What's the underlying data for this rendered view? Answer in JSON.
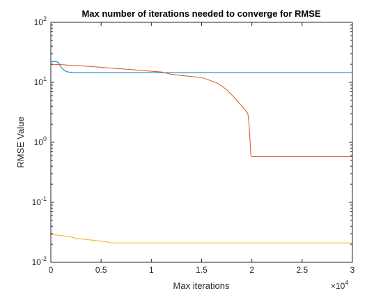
{
  "chart_data": {
    "type": "line",
    "title": "Max number of iterations needed to converge for RMSE",
    "xlabel": "Max iterations",
    "ylabel": "RMSE Value",
    "x_multiplier_label": "×10",
    "x_multiplier_exponent": "4",
    "xlim": [
      0,
      30000
    ],
    "ylim": [
      0.01,
      100
    ],
    "yscale": "log",
    "grid": false,
    "legend": "none",
    "x_ticks": [
      0,
      5000,
      10000,
      15000,
      20000,
      25000,
      30000
    ],
    "x_tick_labels": [
      "0",
      "0.5",
      "1",
      "1.5",
      "2",
      "2.5",
      "3"
    ],
    "y_ticks": [
      0.01,
      0.1,
      1,
      10,
      100
    ],
    "y_tick_base": [
      "10",
      "10",
      "10",
      "10",
      "10"
    ],
    "y_tick_exponents": [
      "-2",
      "-1",
      "0",
      "1",
      "2"
    ],
    "series": [
      {
        "color": "#0072BD",
        "x": [
          0,
          200,
          500,
          800,
          1000,
          1300,
          1600,
          2000,
          2300,
          2600,
          3000,
          10000,
          20000,
          30000
        ],
        "y": [
          22.5,
          22.0,
          22.5,
          21.0,
          18.0,
          16.0,
          15.0,
          14.7,
          14.5,
          14.5,
          14.5,
          14.5,
          14.5,
          14.5
        ]
      },
      {
        "color": "#D95319",
        "x": [
          0,
          1000,
          2000,
          3000,
          4000,
          5000,
          6000,
          7000,
          8000,
          9000,
          10000,
          11000,
          11500,
          12000,
          13000,
          14000,
          15000,
          15500,
          16000,
          16500,
          17000,
          17500,
          18000,
          18500,
          19000,
          19300,
          19500,
          19600,
          19700,
          19800,
          19900,
          20000,
          22000,
          25000,
          30000
        ],
        "y": [
          20,
          19.7,
          19.2,
          18.8,
          18.3,
          17.8,
          17.2,
          16.8,
          16.3,
          15.8,
          15.3,
          14.9,
          14.2,
          13.6,
          13.0,
          12.5,
          12.0,
          11.3,
          10.5,
          9.8,
          8.7,
          7.5,
          6.2,
          5.0,
          4.0,
          3.5,
          3.2,
          3.0,
          2.2,
          1.2,
          0.6,
          0.58,
          0.58,
          0.58,
          0.58
        ]
      },
      {
        "color": "#EDB120",
        "x": [
          0,
          500,
          1000,
          2000,
          2500,
          3500,
          4500,
          5500,
          6000,
          10000,
          20000,
          30000
        ],
        "y": [
          0.029,
          0.0285,
          0.028,
          0.0265,
          0.025,
          0.024,
          0.023,
          0.022,
          0.021,
          0.021,
          0.021,
          0.021
        ]
      }
    ]
  }
}
